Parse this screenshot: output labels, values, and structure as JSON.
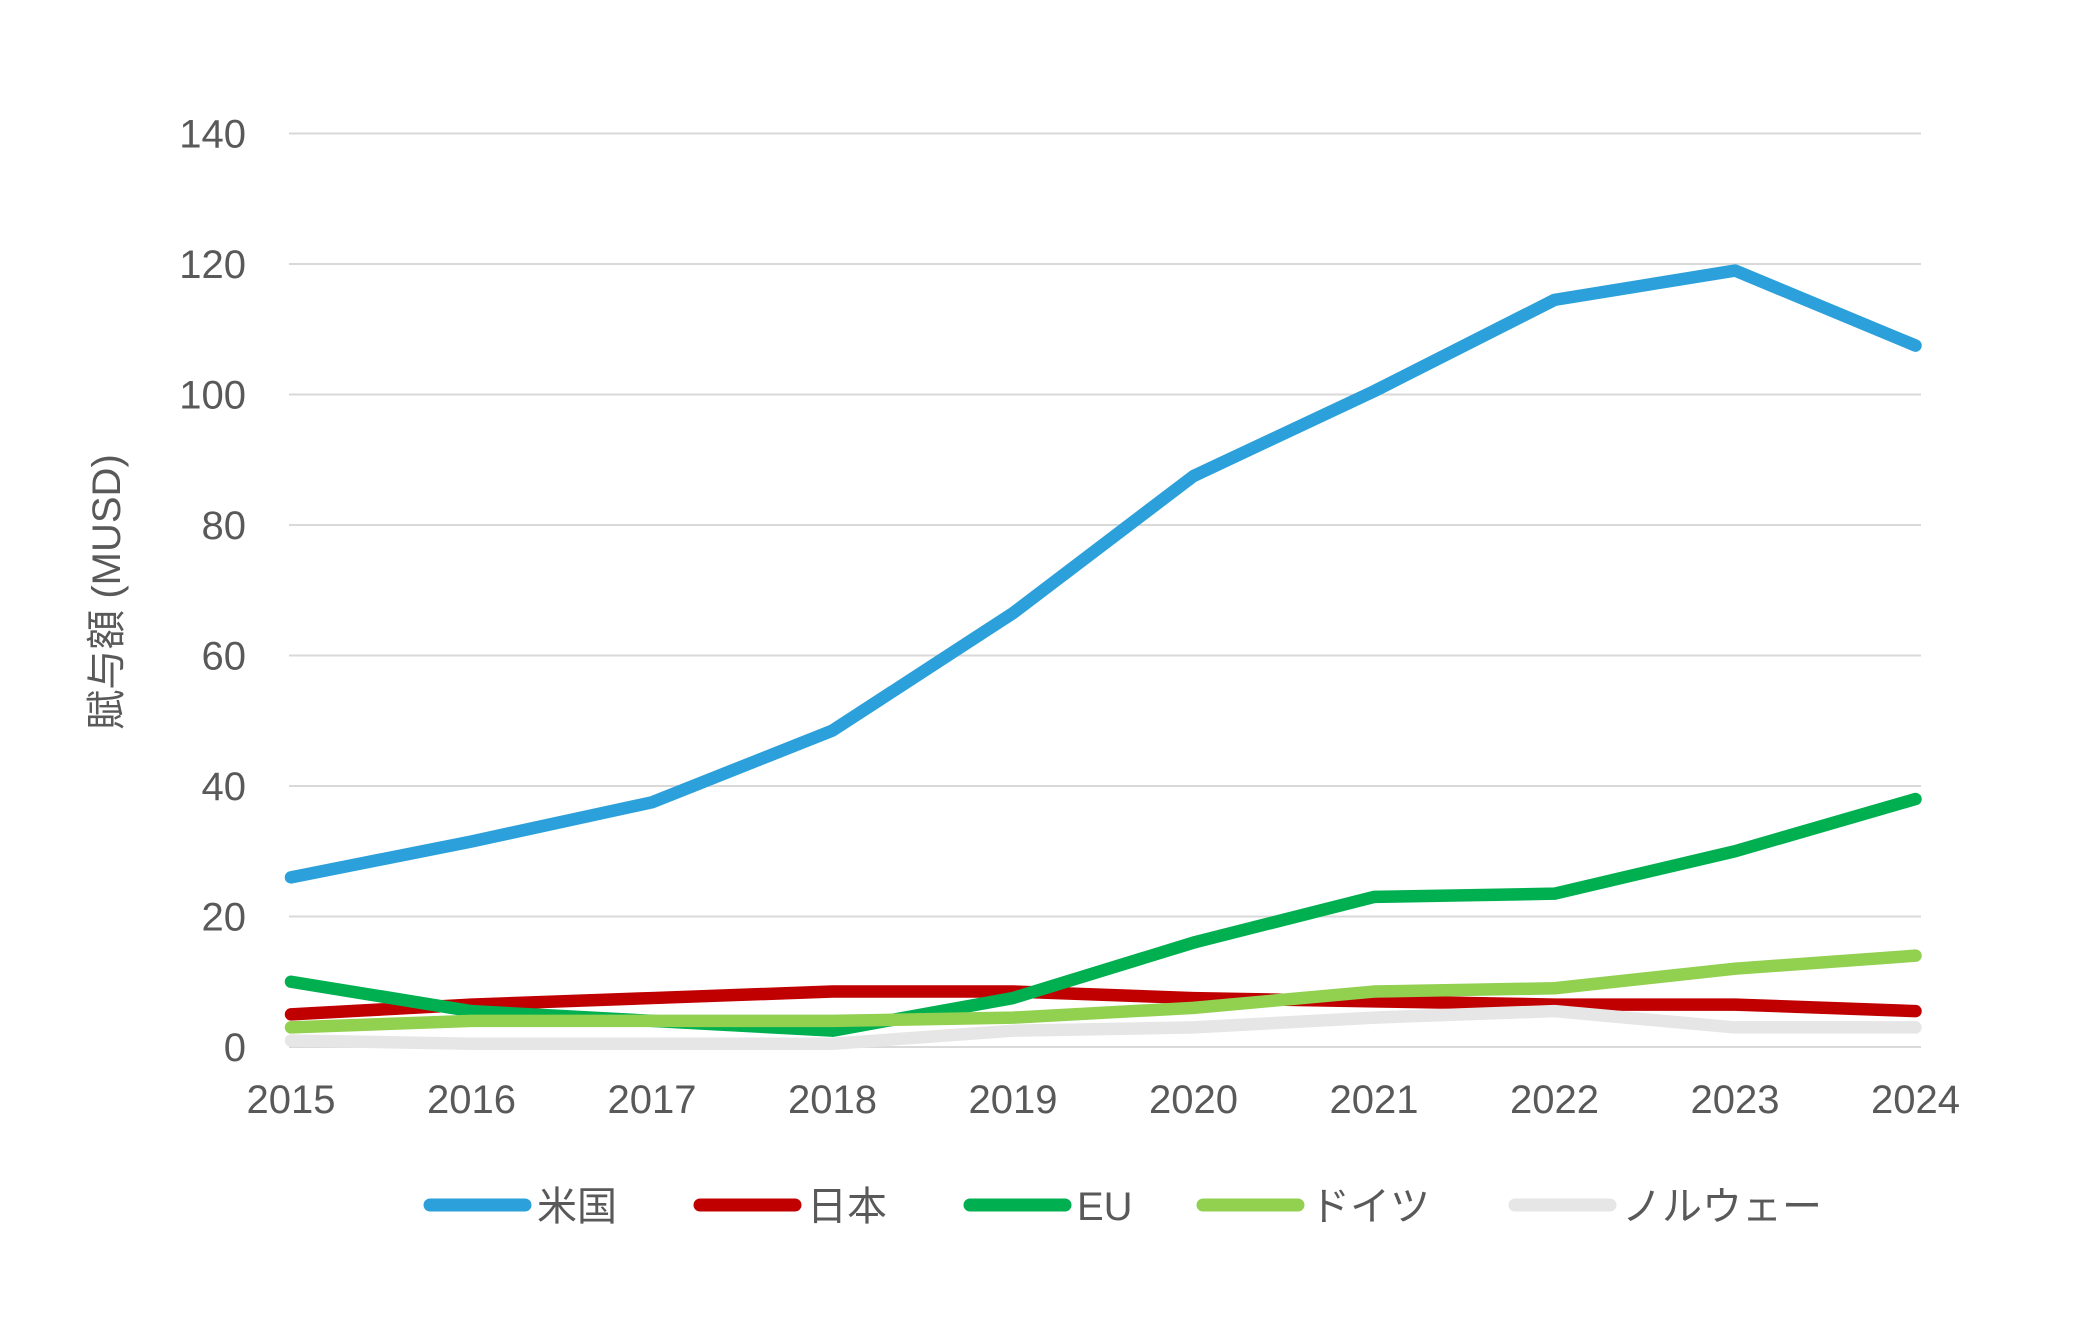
{
  "chart_data": {
    "type": "line",
    "ylabel": "賦与額 (MUSD)",
    "xlabel": "",
    "categories": [
      "2015",
      "2016",
      "2017",
      "2018",
      "2019",
      "2020",
      "2021",
      "2022",
      "2023",
      "2024"
    ],
    "y_ticks": [
      0,
      20,
      40,
      60,
      80,
      100,
      120,
      140
    ],
    "ylim": [
      0,
      140
    ],
    "grid": "horizontal",
    "gridline_color": "#D9D9D9",
    "axis_text_color": "#595959",
    "legend_position": "bottom",
    "series": [
      {
        "id": "usa",
        "name": "米国",
        "color": "#2BA0DA",
        "values": [
          26,
          31.5,
          37.5,
          48.5,
          66.5,
          87.5,
          100.5,
          114.5,
          119,
          107.5
        ]
      },
      {
        "id": "japan",
        "name": "日本",
        "color": "#C00000",
        "values": [
          5,
          6.5,
          7.5,
          8.5,
          8.5,
          7.5,
          7,
          6.5,
          6.5,
          5.5
        ]
      },
      {
        "id": "eu",
        "name": "EU",
        "color": "#00B050",
        "values": [
          10,
          5.5,
          4,
          2.5,
          7.5,
          16,
          23,
          23.5,
          30,
          38
        ]
      },
      {
        "id": "germany",
        "name": "ドイツ",
        "color": "#92D050",
        "values": [
          3,
          4,
          4,
          4,
          4.5,
          6,
          8.5,
          9,
          12,
          14
        ]
      },
      {
        "id": "norway",
        "name": "ノルウェー",
        "color": "#E7E6E6",
        "values": [
          1,
          0.5,
          0.5,
          0.5,
          2.5,
          3,
          4.5,
          5.5,
          3,
          3
        ]
      }
    ]
  }
}
